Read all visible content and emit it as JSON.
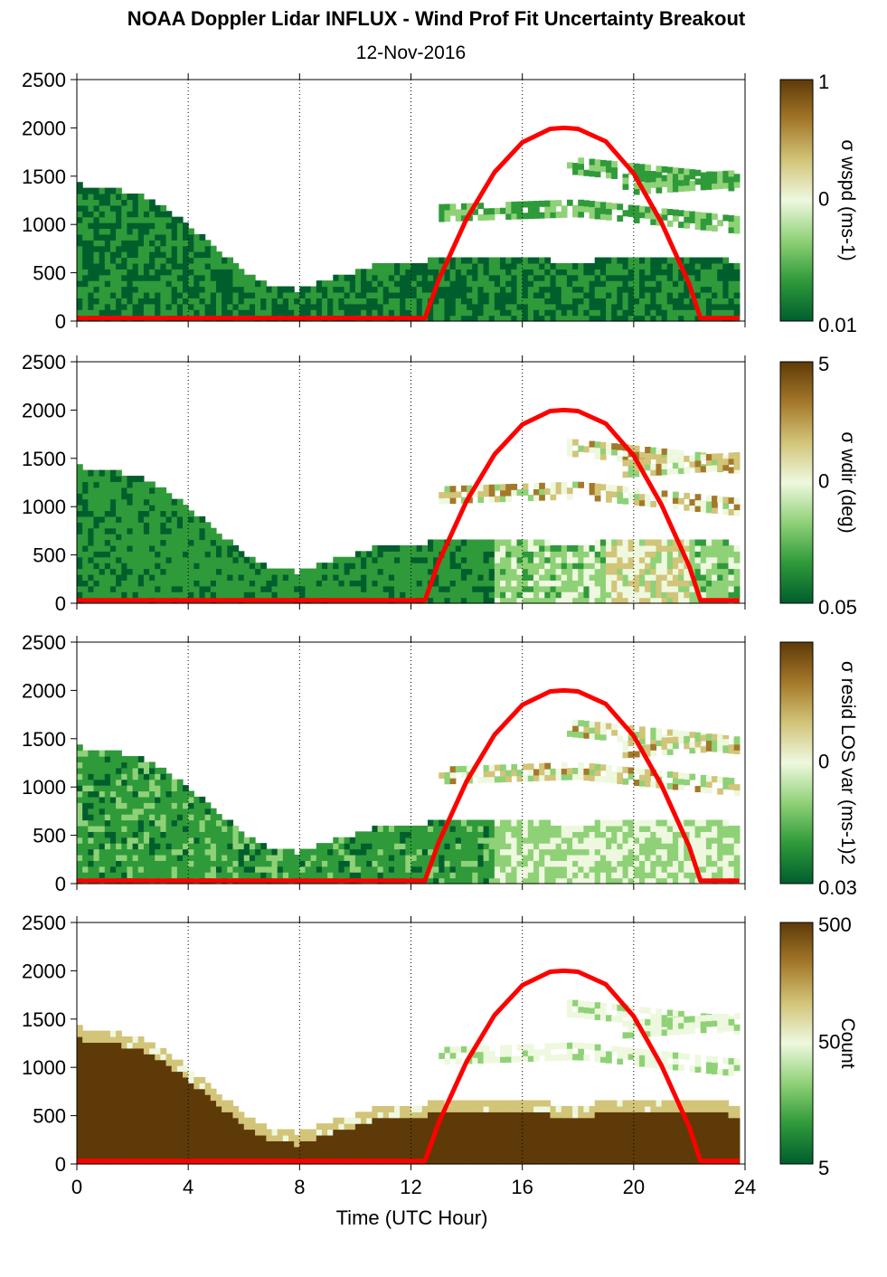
{
  "title": "NOAA Doppler Lidar INFLUX - Wind Prof Fit Uncertainty Breakout",
  "subtitle": "12-Nov-2016",
  "chart_data": {
    "type": "heatmap",
    "xlabel": "Time (UTC Hour)",
    "xlim": [
      0,
      24
    ],
    "x_ticks": [
      "0",
      "4",
      "8",
      "12",
      "16",
      "20",
      "24"
    ],
    "ylim": [
      0,
      2500
    ],
    "y_ticks": [
      "0",
      "500",
      "1000",
      "1500",
      "2000",
      "2500"
    ],
    "grid": "vertical dotted lines at 4, 8, 12, 16, 20, 24",
    "overlay_line": {
      "description": "red arc",
      "color": "#ff0000",
      "x": [
        0,
        12.5,
        13,
        14,
        15,
        16,
        17,
        17.5,
        18,
        19,
        20,
        21,
        22,
        22.4,
        23.8
      ],
      "y": [
        30,
        30,
        430,
        1060,
        1540,
        1850,
        1990,
        2000,
        1990,
        1860,
        1530,
        1020,
        380,
        30,
        30
      ]
    },
    "panels": [
      {
        "name": "wspd",
        "colorbar_label": "σ wspd (ms-1)",
        "colorbar_ticks": [
          "1",
          "0",
          "0.01"
        ],
        "colormap": [
          "#005e2d",
          "#2f9a3a",
          "#8fd177",
          "#eef8df",
          "#d2c478",
          "#a4782a",
          "#5e3a08"
        ]
      },
      {
        "name": "wdir",
        "colorbar_label": "σ wdir (deg)",
        "colorbar_ticks": [
          "5",
          "0",
          "0.05"
        ],
        "colormap": [
          "#005e2d",
          "#2f9a3a",
          "#8fd177",
          "#eef8df",
          "#d2c478",
          "#a4782a",
          "#5e3a08"
        ]
      },
      {
        "name": "resid",
        "colorbar_label": "σ resid LOS var (ms-1)2",
        "colorbar_ticks": [
          "",
          "0",
          "0.03"
        ],
        "colormap": [
          "#005e2d",
          "#2f9a3a",
          "#8fd177",
          "#eef8df",
          "#d2c478",
          "#a4782a",
          "#5e3a08"
        ]
      },
      {
        "name": "count",
        "colorbar_label": "Count",
        "colorbar_ticks": [
          "500",
          "50",
          "5"
        ],
        "colormap": [
          "#005e2d",
          "#2f9a3a",
          "#8fd177",
          "#eef8df",
          "#d2c478",
          "#a4782a",
          "#5e3a08"
        ]
      }
    ]
  }
}
